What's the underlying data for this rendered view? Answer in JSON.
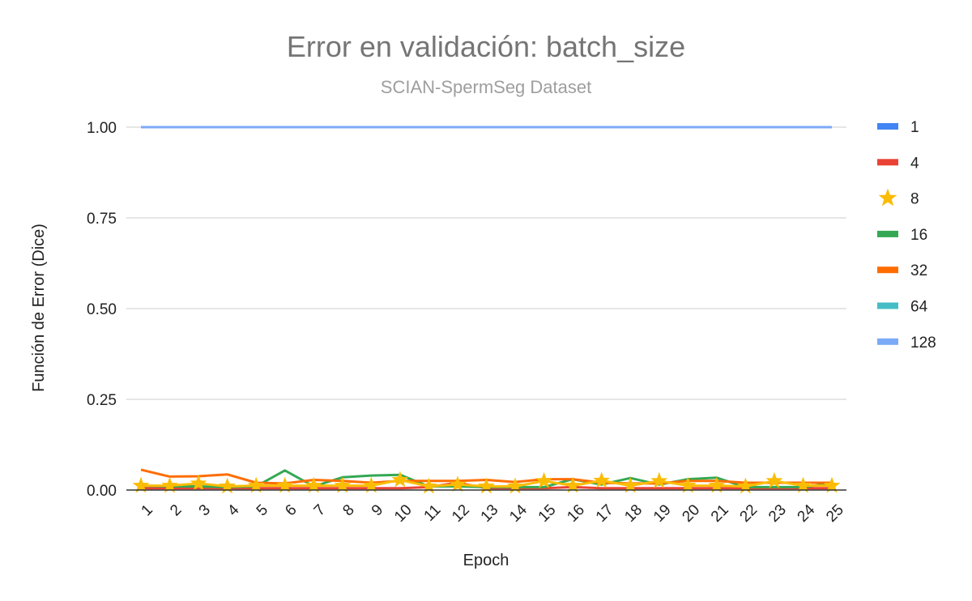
{
  "chart_data": {
    "type": "line",
    "title": "Error en validación: batch_size",
    "subtitle": "SCIAN-SpermSeg Dataset",
    "xlabel": "Epoch",
    "ylabel": "Función de Error (Dice)",
    "ylim": [
      0,
      1
    ],
    "yticks": [
      "0.00",
      "0.25",
      "0.50",
      "0.75",
      "1.00"
    ],
    "x": [
      "1",
      "2",
      "3",
      "4",
      "5",
      "6",
      "7",
      "8",
      "9",
      "10",
      "11",
      "12",
      "13",
      "14",
      "15",
      "16",
      "17",
      "18",
      "19",
      "20",
      "21",
      "22",
      "23",
      "24",
      "25"
    ],
    "grid": true,
    "legend_position": "right",
    "series": [
      {
        "name": "1",
        "color": "#4285F4",
        "marker": "none",
        "values": [
          1,
          1,
          1,
          1,
          1,
          1,
          1,
          1,
          1,
          1,
          1,
          1,
          1,
          1,
          1,
          1,
          1,
          1,
          1,
          1,
          1,
          1,
          1,
          1,
          1
        ]
      },
      {
        "name": "4",
        "color": "#EA4335",
        "marker": "none",
        "values": [
          0.005,
          0.005,
          0.005,
          0.005,
          0.005,
          0.005,
          0.005,
          0.005,
          0.005,
          0.005,
          0.008,
          0.02,
          0.005,
          0.005,
          0.005,
          0.008,
          0.005,
          0.005,
          0.005,
          0.005,
          0.005,
          0.005,
          0.005,
          0.005,
          0.005
        ]
      },
      {
        "name": "8",
        "color": "#FBBC04",
        "marker": "star",
        "values": [
          0.012,
          0.012,
          0.018,
          0.01,
          0.012,
          0.012,
          0.012,
          0.012,
          0.012,
          0.028,
          0.01,
          0.015,
          0.01,
          0.01,
          0.025,
          0.012,
          0.026,
          0.012,
          0.025,
          0.012,
          0.012,
          0.01,
          0.025,
          0.012,
          0.012
        ]
      },
      {
        "name": "16",
        "color": "#34A853",
        "marker": "none",
        "values": [
          0.012,
          0.01,
          0.01,
          0.008,
          0.01,
          0.054,
          0.01,
          0.035,
          0.04,
          0.042,
          0.01,
          0.01,
          0.008,
          0.008,
          0.008,
          0.03,
          0.015,
          0.033,
          0.015,
          0.03,
          0.034,
          0.008,
          0.008,
          0.008,
          0.018
        ]
      },
      {
        "name": "32",
        "color": "#FF6D01",
        "marker": "none",
        "values": [
          0.056,
          0.037,
          0.038,
          0.043,
          0.02,
          0.018,
          0.028,
          0.025,
          0.02,
          0.025,
          0.025,
          0.025,
          0.028,
          0.022,
          0.03,
          0.03,
          0.02,
          0.018,
          0.018,
          0.025,
          0.025,
          0.02,
          0.02,
          0.02,
          0.02
        ]
      },
      {
        "name": "64",
        "color": "#46BDC6",
        "marker": "none",
        "values": [
          1,
          1,
          1,
          1,
          1,
          1,
          1,
          1,
          1,
          1,
          1,
          1,
          1,
          1,
          1,
          1,
          1,
          1,
          1,
          1,
          1,
          1,
          1,
          1,
          1
        ]
      },
      {
        "name": "128",
        "color": "#7BAAF7",
        "marker": "none",
        "values": [
          1,
          1,
          1,
          1,
          1,
          1,
          1,
          1,
          1,
          1,
          1,
          1,
          1,
          1,
          1,
          1,
          1,
          1,
          1,
          1,
          1,
          1,
          1,
          1,
          1
        ]
      }
    ]
  }
}
